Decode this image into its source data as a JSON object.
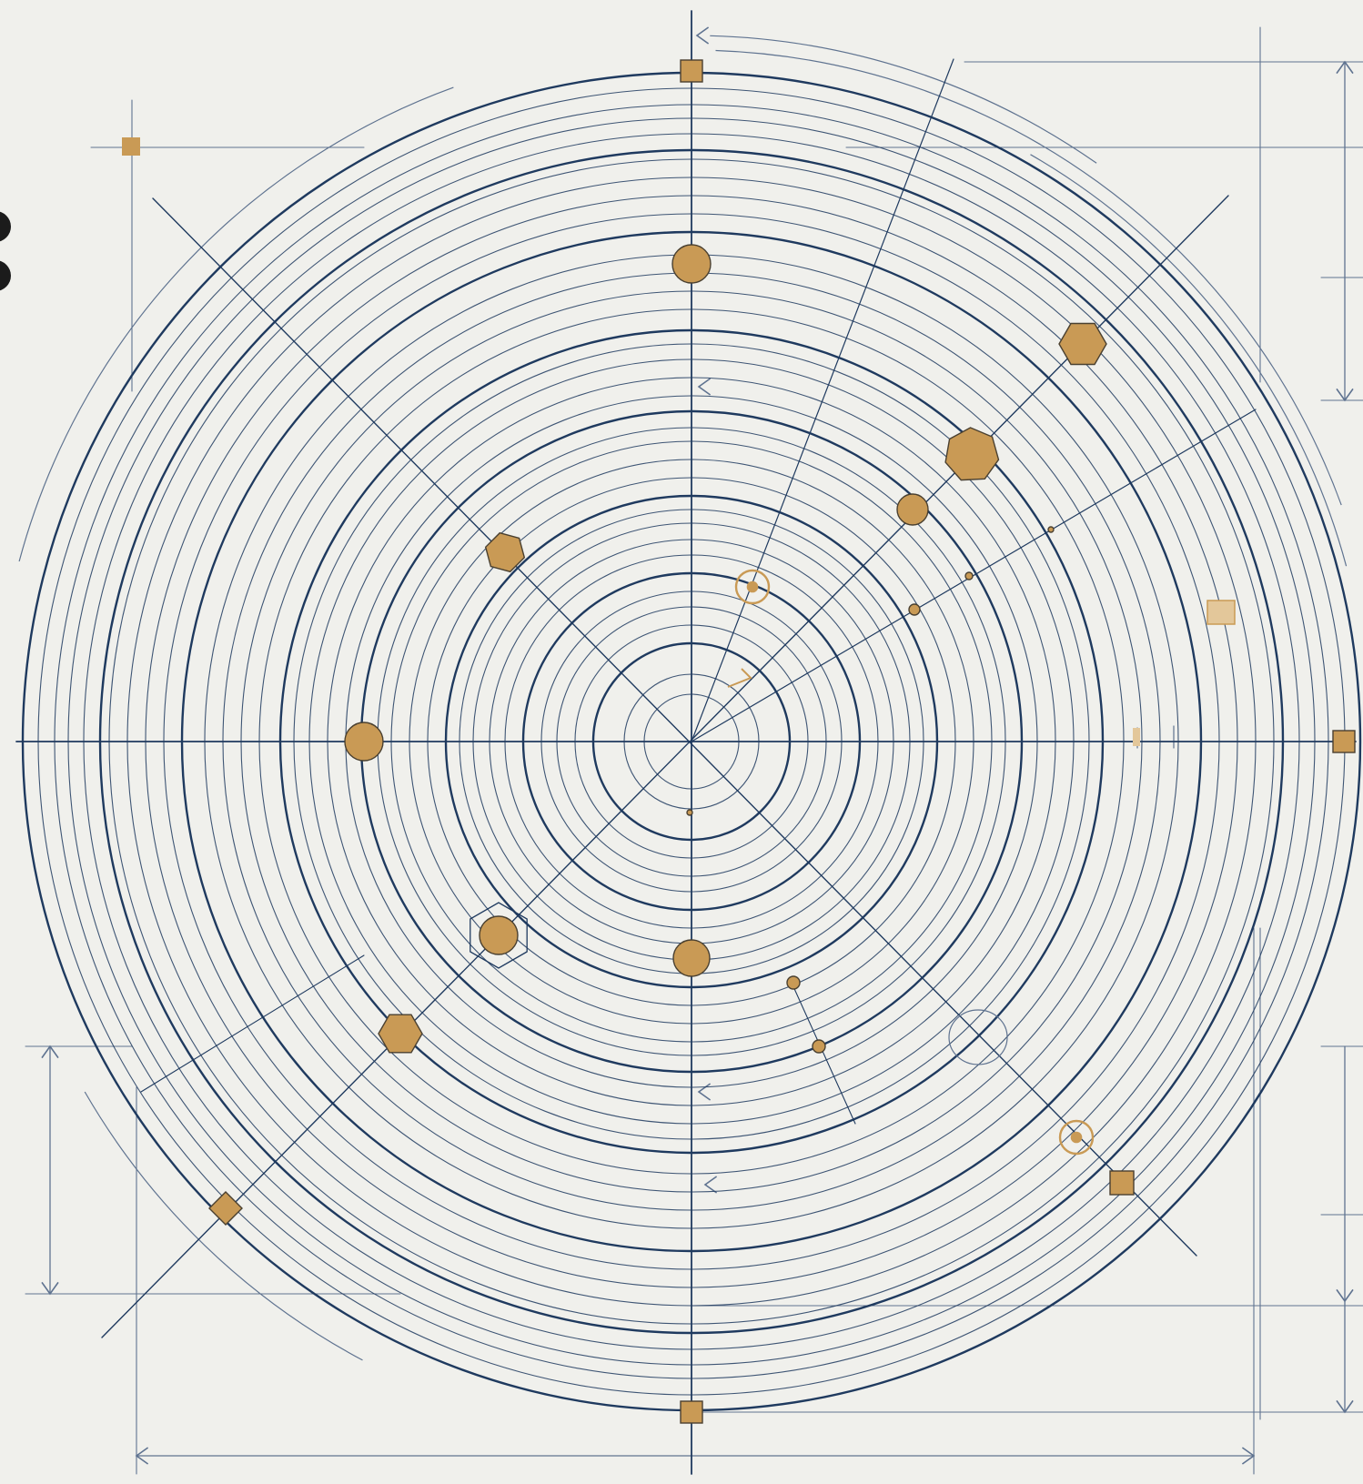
{
  "diagram": {
    "kind": "concentric-orbit-blueprint",
    "text_labels": [],
    "colors": {
      "background": "#f0f0ec",
      "ink": "#1f3a5f",
      "ink_light": "#5f7390",
      "marker_fill": "#c99a55",
      "marker_stroke": "#4a4030"
    },
    "elements": {
      "rings": "concentric-rings",
      "axes": "crosshair-axes",
      "diagonals": "radial-spokes",
      "dimensions": "dimension-lines",
      "markers": "orbit-nodes",
      "edge_mark": "partial-glyph"
    },
    "marker_shapes": [
      "square",
      "circle",
      "hexagon",
      "diamond",
      "small-dot"
    ]
  }
}
